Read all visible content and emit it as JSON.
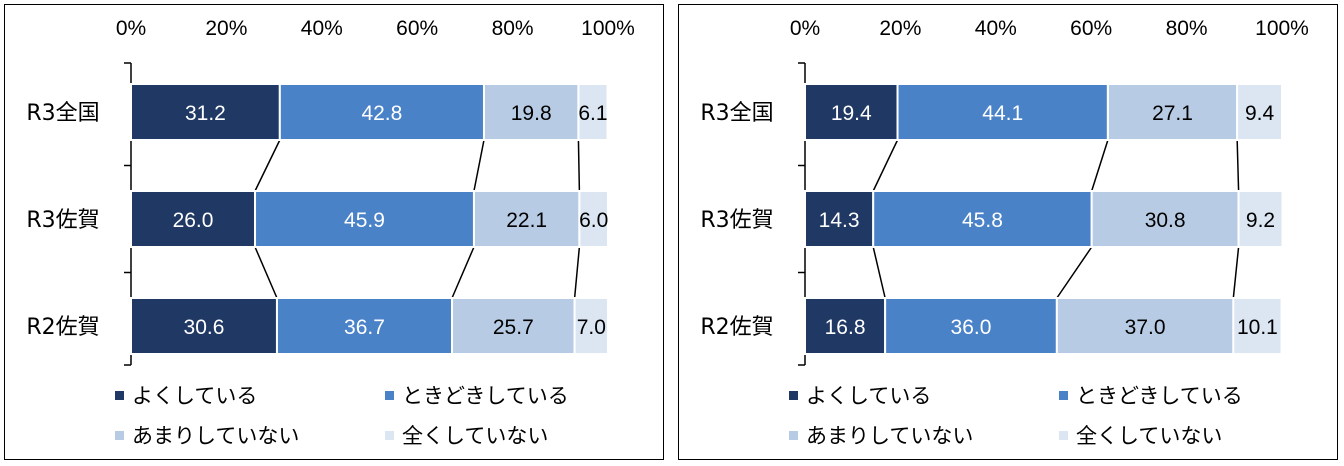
{
  "chart_data": [
    {
      "type": "bar",
      "stacked": true,
      "orientation": "horizontal",
      "categories": [
        "R3全国",
        "R3佐賀",
        "R2佐賀"
      ],
      "series": [
        {
          "name": "よくしている",
          "values": [
            31.2,
            26.0,
            30.6
          ],
          "labels": [
            "31.2",
            "26.0",
            "30.6"
          ],
          "color": "#1f3864"
        },
        {
          "name": "ときどきしている",
          "values": [
            42.8,
            45.9,
            36.7
          ],
          "labels": [
            "42.8",
            "45.9",
            "36.7"
          ],
          "color": "#4a82c8"
        },
        {
          "name": "あまりしていない",
          "values": [
            19.8,
            22.1,
            25.7
          ],
          "labels": [
            "19.8",
            "22.1",
            "25.7"
          ],
          "color": "#b7cce4"
        },
        {
          "name": "全くしていない",
          "values": [
            6.1,
            6.0,
            7.0
          ],
          "labels": [
            "6.1",
            "6.0",
            "7.0"
          ],
          "color": "#dbe6f2"
        }
      ],
      "xlim": [
        0,
        100
      ],
      "xticks": [
        "0%",
        "20%",
        "40%",
        "60%",
        "80%",
        "100%"
      ],
      "xaxis_position": "top",
      "grid": false,
      "series_lines": true,
      "legend_position": "bottom"
    },
    {
      "type": "bar",
      "stacked": true,
      "orientation": "horizontal",
      "categories": [
        "R3全国",
        "R3佐賀",
        "R2佐賀"
      ],
      "series": [
        {
          "name": "よくしている",
          "values": [
            19.4,
            14.3,
            16.8
          ],
          "labels": [
            "19.4",
            "14.3",
            "16.8"
          ],
          "color": "#1f3864"
        },
        {
          "name": "ときどきしている",
          "values": [
            44.1,
            45.8,
            36.0
          ],
          "labels": [
            "44.1",
            "45.8",
            "36.0"
          ],
          "color": "#4a82c8"
        },
        {
          "name": "あまりしていない",
          "values": [
            27.1,
            30.8,
            37.0
          ],
          "labels": [
            "27.1",
            "30.8",
            "37.0"
          ],
          "color": "#b7cce4"
        },
        {
          "name": "全くしていない",
          "values": [
            9.4,
            9.2,
            10.1
          ],
          "labels": [
            "9.4",
            "9.2",
            "10.1"
          ],
          "color": "#dbe6f2"
        }
      ],
      "xlim": [
        0,
        100
      ],
      "xticks": [
        "0%",
        "20%",
        "40%",
        "60%",
        "80%",
        "100%"
      ],
      "xaxis_position": "top",
      "grid": false,
      "series_lines": true,
      "legend_position": "bottom"
    }
  ]
}
